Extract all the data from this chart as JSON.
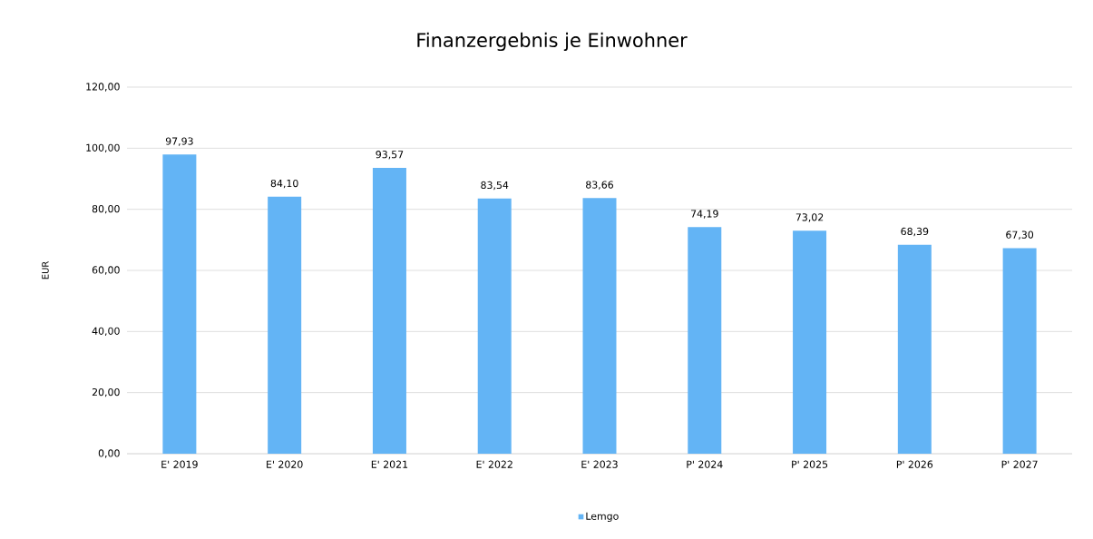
{
  "chart_data": {
    "type": "bar",
    "title": "Finanzergebnis je Einwohner",
    "ylabel": "EUR",
    "categories": [
      "E' 2019",
      "E' 2020",
      "E' 2021",
      "E' 2022",
      "E' 2023",
      "P' 2024",
      "P' 2025",
      "P' 2026",
      "P' 2027"
    ],
    "series": [
      {
        "name": "Lemgo",
        "color": "#63b4f5",
        "values": [
          97.93,
          84.1,
          93.57,
          83.54,
          83.66,
          74.19,
          73.02,
          68.39,
          67.3
        ],
        "value_labels": [
          "97,93",
          "84,10",
          "93,57",
          "83,54",
          "83,66",
          "74,19",
          "73,02",
          "68,39",
          "67,30"
        ]
      }
    ],
    "ylim": [
      0,
      120
    ],
    "yticks": [
      {
        "value": 0,
        "label": "0,00"
      },
      {
        "value": 20,
        "label": "20,00"
      },
      {
        "value": 40,
        "label": "40,00"
      },
      {
        "value": 60,
        "label": "60,00"
      },
      {
        "value": 80,
        "label": "80,00"
      },
      {
        "value": 100,
        "label": "100,00"
      },
      {
        "value": 120,
        "label": "120,00"
      }
    ],
    "grid": "y",
    "legend": "bottom"
  }
}
